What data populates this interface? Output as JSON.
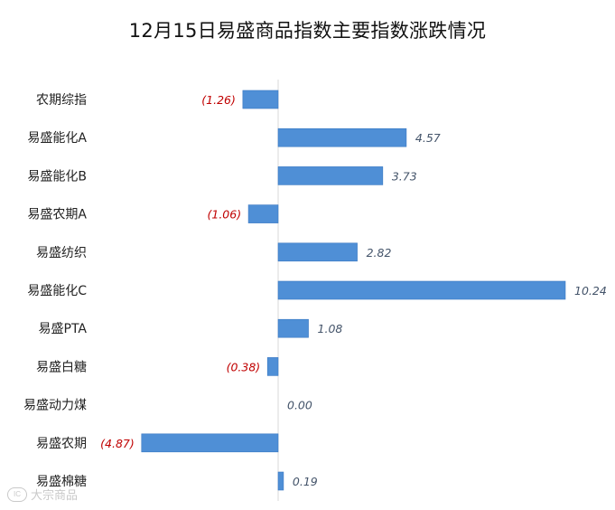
{
  "chart_data": {
    "type": "bar",
    "orientation": "horizontal",
    "title": "12月15日易盛商品指数主要指数涨跌情况",
    "categories": [
      "农期综指",
      "易盛能化A",
      "易盛能化B",
      "易盛农期A",
      "易盛纺织",
      "易盛能化C",
      "易盛PTA",
      "易盛白糖",
      "易盛动力煤",
      "易盛农期",
      "易盛棉糖"
    ],
    "values": [
      -1.26,
      4.57,
      3.73,
      -1.06,
      2.82,
      10.24,
      1.08,
      -0.38,
      0.0,
      -4.87,
      0.19
    ],
    "value_labels": [
      "(1.26)",
      "4.57",
      "3.73",
      "(1.06)",
      "2.82",
      "10.24",
      "1.08",
      "(0.38)",
      "0.00",
      "(4.87)",
      "0.19"
    ],
    "xlim": [
      -4.87,
      10.24
    ],
    "grid": false,
    "legend": "none"
  },
  "colors": {
    "bar": "#4f8fd6",
    "bar_edge": "#3a78c2",
    "positive_label": "#44546a",
    "negative_label": "#c00000",
    "axis": "#d9d9d9"
  },
  "watermark": {
    "logo": "IC",
    "text": "大宗商品"
  }
}
